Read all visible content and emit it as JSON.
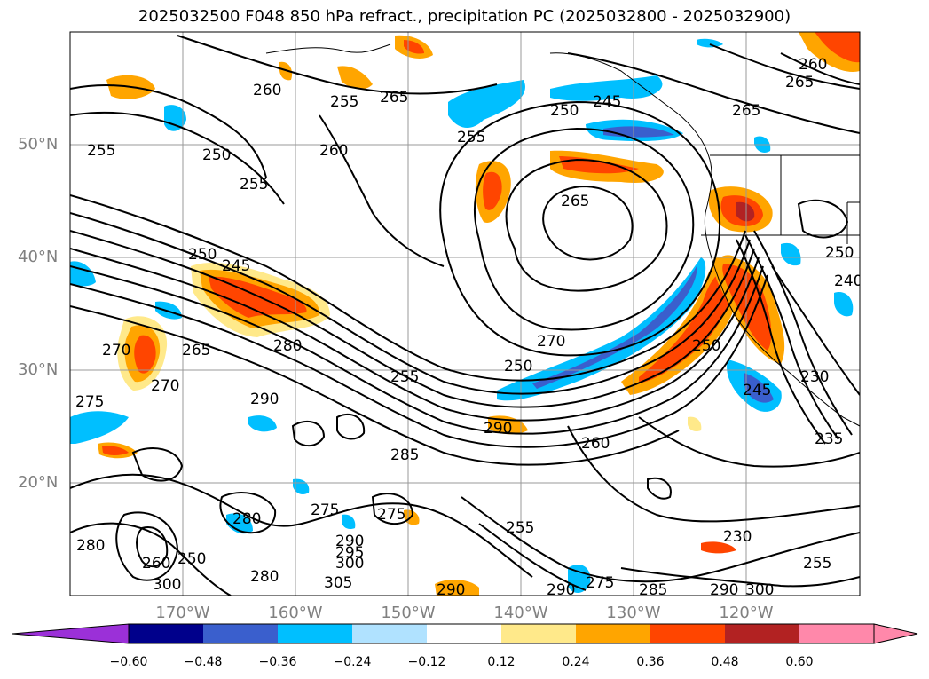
{
  "title": "2025032500 F048 850 hPa refract., precipitation PC (2025032800 - 2025032900)",
  "latitude_labels": [
    "50°N",
    "40°N",
    "30°N",
    "20°N"
  ],
  "longitude_labels": [
    "170°W",
    "160°W",
    "150°W",
    "140°W",
    "130°W",
    "120°W"
  ],
  "contour_labels": [
    "255",
    "260",
    "265",
    "250",
    "255",
    "260",
    "265",
    "255",
    "250",
    "265",
    "245",
    "250",
    "255",
    "260",
    "265",
    "250",
    "245",
    "270",
    "280",
    "275",
    "270",
    "265",
    "290",
    "255",
    "250",
    "270",
    "290",
    "285",
    "260",
    "275",
    "280",
    "290",
    "295",
    "300",
    "305",
    "275",
    "280",
    "290",
    "260",
    "250",
    "300",
    "255",
    "230",
    "290",
    "300",
    "285",
    "245",
    "250",
    "240",
    "235",
    "230",
    "255",
    "275",
    "290",
    "280"
  ],
  "colorbar": {
    "colors": [
      "#9b30d8",
      "#00008b",
      "#3a5fcd",
      "#00bfff",
      "#b0e2ff",
      "#ffffff",
      "#ffe98a",
      "#ffa500",
      "#ff4500",
      "#b22222",
      "#ff88aa"
    ],
    "tick_labels": [
      "−0.60",
      "−0.48",
      "−0.36",
      "−0.24",
      "−0.12",
      "0.12",
      "0.24",
      "0.36",
      "0.48",
      "0.60"
    ]
  }
}
